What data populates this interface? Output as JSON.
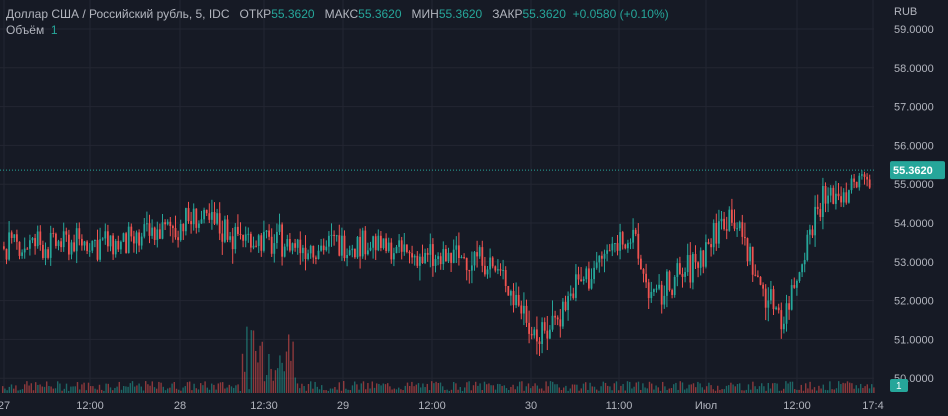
{
  "legend": {
    "symbol": "Доллар США / Российский рубль, 5, IDC",
    "open_label": "ОТКР",
    "open": "55.3620",
    "high_label": "МАКС",
    "high": "55.3620",
    "low_label": "МИН",
    "low": "55.3620",
    "close_label": "ЗАКР",
    "close": "55.3620",
    "change": "+0.0580 (+0.10%)",
    "volume_label": "Объём",
    "volume": "1"
  },
  "currency": "RUB",
  "colors": {
    "background": "#161a25",
    "up": "#26a69a",
    "down": "#ef5350",
    "price_label": "#26a69a",
    "text": "#b2b5be",
    "grid": "#232632"
  },
  "chart_data": {
    "type": "candlestick",
    "ylim": [
      49.8,
      59.2
    ],
    "y_ticks": [
      "59.0000",
      "58.0000",
      "57.0000",
      "56.0000",
      "55.0000",
      "54.0000",
      "53.0000",
      "52.0000",
      "51.0000",
      "50.0000"
    ],
    "x_ticks": [
      "27",
      "12:00",
      "28",
      "12:30",
      "29",
      "12:00",
      "30",
      "11:00",
      "Июл",
      "12:00",
      "17:4"
    ],
    "last_price": 55.362,
    "last_price_label": "55.3620",
    "volume_label": "1",
    "price_path_x": [
      0,
      0.1,
      0.15,
      0.22,
      0.3,
      0.38,
      0.42,
      0.45,
      0.5,
      0.55,
      0.58,
      0.62,
      0.66,
      0.72,
      0.75,
      0.8,
      0.84,
      0.87,
      0.9,
      0.94,
      1.0
    ],
    "price_path_y": [
      53.4,
      53.5,
      53.45,
      54.1,
      53.5,
      53.4,
      53.55,
      53.3,
      53.0,
      53.2,
      52.5,
      51.0,
      52.3,
      53.8,
      52.0,
      53.0,
      54.4,
      52.5,
      51.6,
      54.5,
      55.2
    ],
    "note_ranges": [
      [
        0,
        0.1,
        53.4,
        54.9
      ]
    ]
  }
}
